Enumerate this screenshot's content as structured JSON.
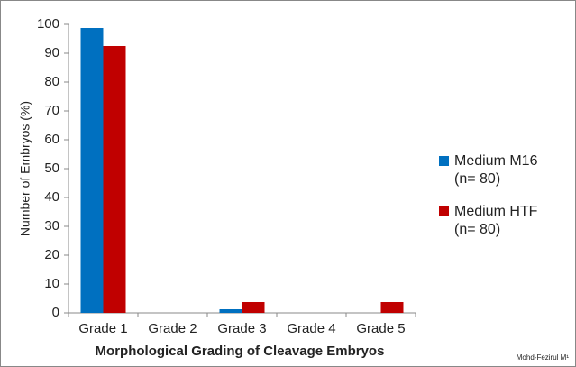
{
  "chart_data": {
    "type": "bar",
    "y_label": "Number of Embryos (%)",
    "x_label": "Morphological Grading of Cleavage Embryos",
    "annotation": "Mohd-Fezirul M¹",
    "categories": [
      "Grade 1",
      "Grade 2",
      "Grade 3",
      "Grade 4",
      "Grade 5"
    ],
    "series": [
      {
        "name": "Medium M16\n(n= 80)",
        "color": "#0070c0",
        "values": [
          98.75,
          0,
          1.25,
          0,
          0
        ]
      },
      {
        "name": "Medium HTF\n(n= 80)",
        "color": "#c00000",
        "values": [
          92.5,
          0,
          3.75,
          0,
          3.75
        ]
      }
    ],
    "ylim": [
      0,
      100
    ],
    "yticks": [
      0,
      10,
      20,
      30,
      40,
      50,
      60,
      70,
      80,
      90,
      100
    ],
    "grid": false,
    "legend": "right"
  }
}
